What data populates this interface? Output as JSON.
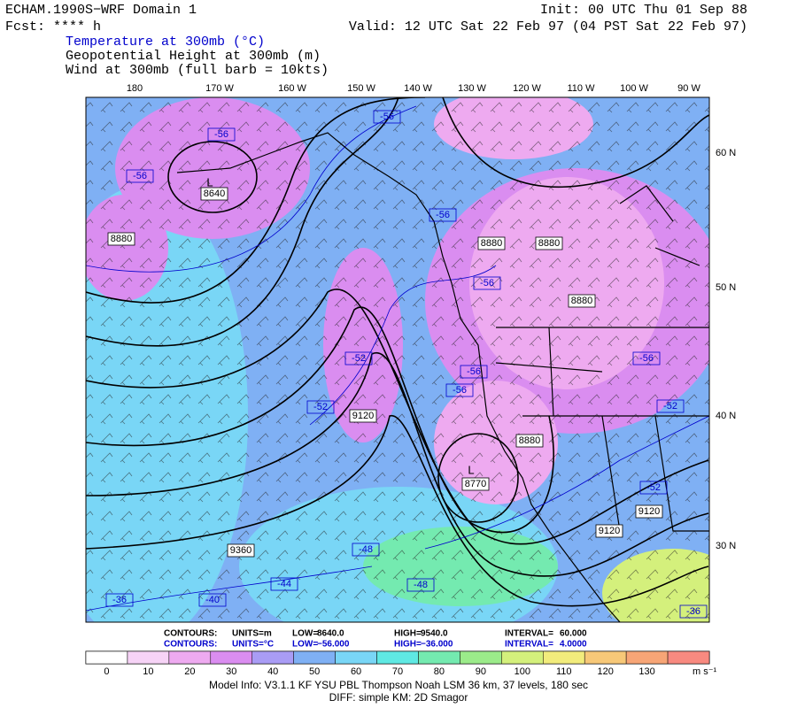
{
  "header": {
    "title": "ECHAM.1990S−WRF Domain 1",
    "init": "Init: 00 UTC Thu 01 Sep 88",
    "forecast": "Fcst: **** h",
    "valid": "Valid: 12 UTC Sat 22 Feb 97 (04 PST Sat 22 Feb 97)",
    "fields": [
      "Temperature at 300mb (°C)",
      "Geopotential Height at 300mb (m)",
      "Wind at 300mb (full barb = 10kts)"
    ]
  },
  "map": {
    "longitude_labels": [
      "180",
      "170 W",
      "160 W",
      "150 W",
      "140 W",
      "130 W",
      "120 W",
      "110 W",
      "100 W",
      "90 W"
    ],
    "latitude_labels": [
      "60 N",
      "50 N",
      "40 N",
      "30 N"
    ],
    "contour_labels": [
      "-56",
      "-56",
      "-56",
      "L",
      "8640",
      "8880",
      "-56",
      "8880",
      "8880",
      "-56",
      "8880",
      "-52",
      "-56",
      "-56",
      "-52",
      "9120",
      "-56",
      "-52",
      "8880",
      "L",
      "8770",
      "-52",
      "9120",
      "9120",
      "9360",
      "-48",
      "-44",
      "-48",
      "-40",
      "-36",
      "-36"
    ]
  },
  "contour_info": [
    [
      "CONTOURS:",
      "UNITS=m",
      "LOW=",
      "8640.0",
      "HIGH=",
      "9540.0",
      "INTERVAL=",
      "60.000"
    ],
    [
      "CONTOURS:",
      "UNITS=°C",
      "LOW=",
      "−56.000",
      "HIGH=",
      "−36.000",
      "INTERVAL=",
      "4.0000"
    ]
  ],
  "colorbar": {
    "labels": [
      "0",
      "10",
      "20",
      "30",
      "40",
      "50",
      "60",
      "70",
      "80",
      "90",
      "100",
      "110",
      "120",
      "130"
    ],
    "unit": "m s⁻¹",
    "colors": [
      "#ffffff",
      "#f6d3f6",
      "#eeaaf0",
      "#da8df0",
      "#a99cf5",
      "#7fb0f4",
      "#79d6f6",
      "#5fe9e3",
      "#74eab0",
      "#9beb8a",
      "#d4f07c",
      "#f2ec7c",
      "#f7c878",
      "#f7a576",
      "#f88a80"
    ]
  },
  "footer": {
    "model_info": "Model Info: V3.1.1    KF    YSU PBL   Thompson    Noah LSM   36 km,    37 levels,   180 sec",
    "diff": "DIFF: simple KM: 2D Smagor"
  }
}
